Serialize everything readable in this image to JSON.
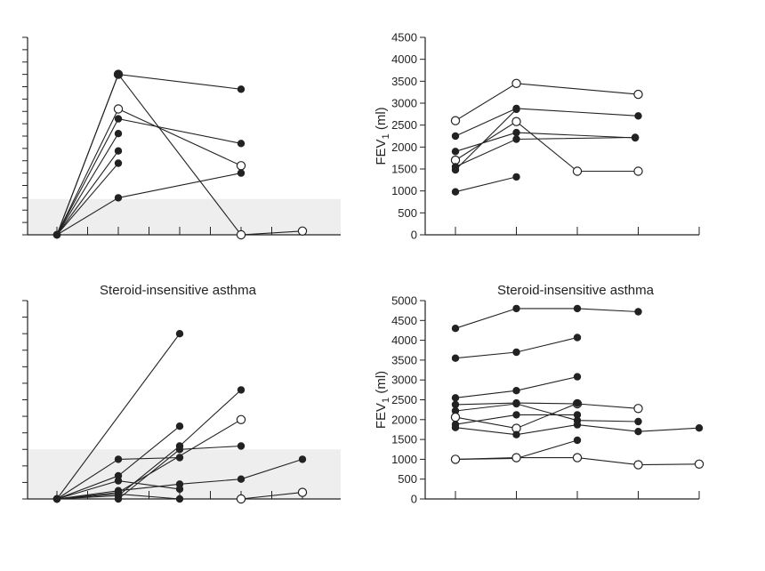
{
  "colors": {
    "band": "#eeeeee",
    "ink": "#222222",
    "open_fill": "#ffffff"
  },
  "chart_data": [
    {
      "type": "line",
      "title": "",
      "xlabel": "",
      "ylabel": "",
      "ylim": [
        0,
        8
      ],
      "x_ticks": [
        0,
        1,
        2,
        3,
        4
      ],
      "reference_band": [
        0,
        1.45
      ],
      "series": [
        {
          "name": "s1",
          "points": [
            [
              0,
              0
            ],
            [
              1,
              6.5
            ],
            [
              3,
              0
            ],
            [
              4,
              0.15
            ]
          ],
          "markers": [
            "filled",
            "open",
            "open",
            "open"
          ]
        },
        {
          "name": "s2",
          "points": [
            [
              0,
              0
            ],
            [
              1,
              6.5
            ],
            [
              3,
              5.9
            ]
          ],
          "markers": [
            "filled",
            "filled",
            "filled"
          ]
        },
        {
          "name": "s3",
          "points": [
            [
              0,
              0
            ],
            [
              1,
              5.1
            ],
            [
              3,
              2.8
            ]
          ],
          "markers": [
            "filled",
            "open",
            "open"
          ]
        },
        {
          "name": "s4",
          "points": [
            [
              0,
              0
            ],
            [
              1,
              4.7
            ],
            [
              3,
              3.7
            ]
          ],
          "markers": [
            "filled",
            "filled",
            "filled"
          ]
        },
        {
          "name": "s5",
          "points": [
            [
              0,
              0
            ],
            [
              1,
              4.1
            ]
          ],
          "markers": [
            "filled",
            "filled"
          ]
        },
        {
          "name": "s6",
          "points": [
            [
              0,
              0
            ],
            [
              1,
              3.4
            ]
          ],
          "markers": [
            "filled",
            "filled"
          ]
        },
        {
          "name": "s7",
          "points": [
            [
              0,
              0
            ],
            [
              1,
              2.9
            ]
          ],
          "markers": [
            "filled",
            "filled"
          ]
        },
        {
          "name": "s8",
          "points": [
            [
              0,
              0
            ],
            [
              1,
              1.5
            ],
            [
              3,
              2.5
            ]
          ],
          "markers": [
            "filled",
            "filled",
            "filled"
          ]
        }
      ]
    },
    {
      "type": "line",
      "title": "",
      "xlabel": "",
      "ylabel": "FEV",
      "ylabel_sub": "1",
      "ylabel_suffix": " (ml)",
      "ylim": [
        0,
        4500
      ],
      "y_ticks": [
        0,
        500,
        1000,
        1500,
        2000,
        2500,
        3000,
        3500,
        4000,
        4500
      ],
      "y_tick_labels": [
        "0",
        "500",
        "1000",
        "1500",
        "2000",
        "2500",
        "3000",
        "3500",
        "4000",
        "4500"
      ],
      "x_ticks": [
        0,
        1,
        2,
        3,
        4
      ],
      "series": [
        {
          "name": "s1",
          "points": [
            [
              0,
              2600
            ],
            [
              1,
              3450
            ],
            [
              3,
              3200
            ]
          ],
          "markers": [
            "open",
            "open",
            "open"
          ]
        },
        {
          "name": "s2",
          "points": [
            [
              0,
              2250
            ],
            [
              1,
              2880
            ],
            [
              3,
              2710
            ]
          ],
          "markers": [
            "filled",
            "filled",
            "filled"
          ]
        },
        {
          "name": "s3",
          "points": [
            [
              0,
              1700
            ],
            [
              1,
              2580
            ],
            [
              2,
              1450
            ],
            [
              3,
              1450
            ]
          ],
          "markers": [
            "open",
            "open",
            "open",
            "open"
          ]
        },
        {
          "name": "s4",
          "points": [
            [
              0,
              1900
            ],
            [
              1,
              2330
            ],
            [
              2.95,
              2210
            ]
          ],
          "markers": [
            "filled",
            "filled",
            "filled"
          ]
        },
        {
          "name": "s5",
          "points": [
            [
              0,
              1550
            ],
            [
              1,
              2180
            ],
            [
              2.95,
              2220
            ]
          ],
          "markers": [
            "filled",
            "filled",
            "filled"
          ]
        },
        {
          "name": "s6",
          "points": [
            [
              0,
              1480
            ],
            [
              1,
              2860
            ]
          ],
          "markers": [
            "filled",
            "filled"
          ]
        },
        {
          "name": "s7",
          "points": [
            [
              0,
              980
            ],
            [
              1,
              1320
            ]
          ],
          "markers": [
            "filled",
            "filled"
          ]
        }
      ]
    },
    {
      "type": "line",
      "title": "Steroid-insensitive asthma",
      "xlabel": "",
      "ylabel": "",
      "ylim": [
        0,
        6
      ],
      "x_ticks": [
        0,
        1,
        2,
        3,
        4
      ],
      "reference_band": [
        0,
        1.5
      ],
      "series": [
        {
          "name": "s1",
          "points": [
            [
              0,
              0
            ],
            [
              2,
              5.0
            ]
          ],
          "markers": [
            "filled",
            "filled"
          ]
        },
        {
          "name": "s2",
          "points": [
            [
              0,
              0
            ],
            [
              1,
              1.2
            ],
            [
              2,
              1.25
            ]
          ],
          "markers": [
            "filled",
            "filled",
            "filled"
          ]
        },
        {
          "name": "s3",
          "points": [
            [
              0,
              0
            ],
            [
              1,
              0.7
            ],
            [
              2,
              2.2
            ]
          ],
          "markers": [
            "filled",
            "filled",
            "filled"
          ]
        },
        {
          "name": "s4",
          "points": [
            [
              0,
              0
            ],
            [
              1,
              0.55
            ],
            [
              2,
              0.3
            ]
          ],
          "markers": [
            "filled",
            "filled",
            "filled"
          ]
        },
        {
          "name": "s5",
          "points": [
            [
              0,
              0
            ],
            [
              1,
              0.1
            ],
            [
              2,
              1.6
            ],
            [
              3,
              3.3
            ]
          ],
          "markers": [
            "filled",
            "filled",
            "filled",
            "filled"
          ]
        },
        {
          "name": "s6",
          "points": [
            [
              0,
              0
            ],
            [
              1,
              0.2
            ],
            [
              3,
              2.4
            ]
          ],
          "markers": [
            "filled",
            "filled",
            "open"
          ]
        },
        {
          "name": "s7",
          "points": [
            [
              0,
              0
            ],
            [
              1,
              0.0
            ],
            [
              2,
              1.5
            ],
            [
              3,
              1.6
            ]
          ],
          "markers": [
            "filled",
            "filled",
            "filled",
            "filled"
          ]
        },
        {
          "name": "s8",
          "points": [
            [
              0,
              0
            ],
            [
              1,
              0.25
            ],
            [
              2,
              0.45
            ],
            [
              3,
              0.6
            ],
            [
              4,
              1.2
            ]
          ],
          "markers": [
            "filled",
            "filled",
            "filled",
            "filled",
            "filled"
          ]
        },
        {
          "name": "s9",
          "points": [
            [
              0,
              0
            ],
            [
              1,
              0.15
            ],
            [
              2,
              0.0
            ],
            [
              3,
              0.0
            ],
            [
              4,
              0.2
            ]
          ],
          "markers": [
            "filled",
            "filled",
            "filled",
            "open",
            "open"
          ]
        }
      ]
    },
    {
      "type": "line",
      "title": "Steroid-insensitive asthma",
      "xlabel": "",
      "ylabel": "FEV",
      "ylabel_sub": "1",
      "ylabel_suffix": " (ml)",
      "ylim": [
        0,
        5000
      ],
      "y_ticks": [
        0,
        500,
        1000,
        1500,
        2000,
        2500,
        3000,
        3500,
        4000,
        4500,
        5000
      ],
      "y_tick_labels": [
        "0",
        "500",
        "1000",
        "1500",
        "2000",
        "2500",
        "3000",
        "3500",
        "4000",
        "4500",
        "5000"
      ],
      "x_ticks": [
        0,
        1,
        2,
        3,
        4
      ],
      "series": [
        {
          "name": "s1",
          "points": [
            [
              0,
              4300
            ],
            [
              1,
              4800
            ],
            [
              2,
              4800
            ],
            [
              3,
              4720
            ]
          ],
          "markers": [
            "filled",
            "filled",
            "filled",
            "filled"
          ]
        },
        {
          "name": "s2",
          "points": [
            [
              0,
              3550
            ],
            [
              1,
              3700
            ],
            [
              2,
              4070
            ]
          ],
          "markers": [
            "filled",
            "filled",
            "filled"
          ]
        },
        {
          "name": "s3",
          "points": [
            [
              0,
              2550
            ],
            [
              1,
              2730
            ],
            [
              2,
              3080
            ]
          ],
          "markers": [
            "filled",
            "filled",
            "filled"
          ]
        },
        {
          "name": "s4",
          "points": [
            [
              0,
              2380
            ],
            [
              1,
              2420
            ],
            [
              2,
              2400
            ],
            [
              3,
              2280
            ]
          ],
          "markers": [
            "filled",
            "filled",
            "open",
            "open"
          ]
        },
        {
          "name": "s5",
          "points": [
            [
              0,
              2220
            ],
            [
              1,
              2400
            ],
            [
              2,
              1980
            ],
            [
              3,
              1950
            ]
          ],
          "markers": [
            "filled",
            "filled",
            "filled",
            "filled"
          ]
        },
        {
          "name": "s6",
          "points": [
            [
              0,
              2060
            ],
            [
              1,
              1780
            ],
            [
              2,
              2410
            ]
          ],
          "markers": [
            "open",
            "open",
            "filled"
          ]
        },
        {
          "name": "s7",
          "points": [
            [
              0,
              1880
            ],
            [
              1,
              2120
            ],
            [
              2,
              2120
            ]
          ],
          "markers": [
            "filled",
            "filled",
            "filled"
          ]
        },
        {
          "name": "s8",
          "points": [
            [
              0,
              1800
            ],
            [
              1,
              1620
            ],
            [
              2,
              1870
            ],
            [
              3,
              1700
            ],
            [
              4,
              1790
            ]
          ],
          "markers": [
            "filled",
            "filled",
            "filled",
            "filled",
            "filled"
          ]
        },
        {
          "name": "s9",
          "points": [
            [
              0,
              1000
            ],
            [
              1,
              1020
            ],
            [
              2,
              1480
            ]
          ],
          "markers": [
            "filled",
            "filled",
            "filled"
          ]
        },
        {
          "name": "s10",
          "points": [
            [
              0,
              1000
            ],
            [
              1,
              1040
            ],
            [
              2,
              1040
            ],
            [
              3,
              860
            ],
            [
              4,
              880
            ]
          ],
          "markers": [
            "open",
            "open",
            "open",
            "open",
            "open"
          ]
        }
      ]
    }
  ]
}
